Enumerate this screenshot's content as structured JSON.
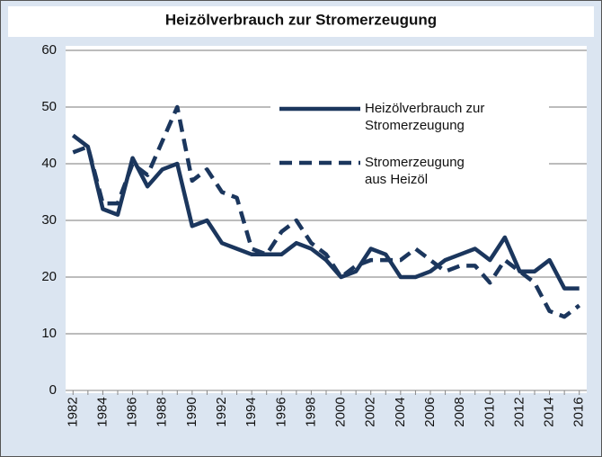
{
  "chart_data": {
    "type": "line",
    "title": "Heizölverbrauch zur Stromerzeugung",
    "x": [
      1982,
      1983,
      1984,
      1985,
      1986,
      1987,
      1988,
      1989,
      1990,
      1991,
      1992,
      1993,
      1994,
      1995,
      1996,
      1997,
      1998,
      1999,
      2000,
      2001,
      2002,
      2003,
      2004,
      2005,
      2006,
      2007,
      2008,
      2009,
      2010,
      2011,
      2012,
      2013,
      2014,
      2015,
      2016
    ],
    "series": [
      {
        "name": "Heizölverbrauch zur Stromerzeugung",
        "color": "#1b365d",
        "dash": false,
        "values": [
          45,
          43,
          32,
          31,
          41,
          36,
          39,
          40,
          29,
          30,
          26,
          25,
          24,
          24,
          24,
          26,
          25,
          23,
          20,
          21,
          25,
          24,
          20,
          20,
          21,
          23,
          24,
          25,
          23,
          27,
          21,
          21,
          23,
          18,
          18
        ]
      },
      {
        "name": "Stromerzeugung aus Heizöl",
        "color": "#1b365d",
        "dash": true,
        "values": [
          42,
          43,
          33,
          33,
          40,
          38,
          44,
          50,
          37,
          39,
          35,
          34,
          25,
          24,
          28,
          30,
          26,
          24,
          20,
          22,
          23,
          23,
          23,
          25,
          23,
          21,
          22,
          22,
          19,
          23,
          21,
          19,
          14,
          13,
          15
        ]
      }
    ],
    "xlim": [
      1981.5,
      2016.5
    ],
    "xticks": [
      1982,
      1984,
      1986,
      1988,
      1990,
      1992,
      1994,
      1996,
      1998,
      2000,
      2002,
      2004,
      2006,
      2008,
      2010,
      2012,
      2014,
      2016
    ],
    "ylim": [
      0,
      60
    ],
    "yticks": [
      0,
      10,
      20,
      30,
      40,
      50,
      60
    ],
    "grid": true
  }
}
